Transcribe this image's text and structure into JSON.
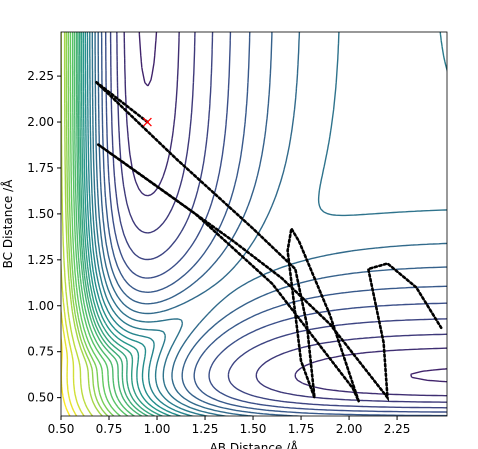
{
  "chart_data": {
    "type": "contour",
    "xlabel": "AB Distance /Å",
    "ylabel": "BC Distance /Å",
    "xlim": [
      0.5,
      2.51
    ],
    "ylim": [
      0.4,
      2.49
    ],
    "xticks": [
      {
        "value": 0.5,
        "label": "0.50"
      },
      {
        "value": 0.75,
        "label": "0.75"
      },
      {
        "value": 1.0,
        "label": "1.00"
      },
      {
        "value": 1.25,
        "label": "1.25"
      },
      {
        "value": 1.5,
        "label": "1.50"
      },
      {
        "value": 1.75,
        "label": "1.75"
      },
      {
        "value": 2.0,
        "label": "2.00"
      },
      {
        "value": 2.25,
        "label": "2.25"
      }
    ],
    "yticks": [
      {
        "value": 0.5,
        "label": "0.50"
      },
      {
        "value": 0.75,
        "label": "0.75"
      },
      {
        "value": 1.0,
        "label": "1.00"
      },
      {
        "value": 1.25,
        "label": "1.25"
      },
      {
        "value": 1.5,
        "label": "1.50"
      },
      {
        "value": 1.75,
        "label": "1.75"
      },
      {
        "value": 2.0,
        "label": "2.00"
      },
      {
        "value": 2.25,
        "label": "2.25"
      }
    ],
    "levels": [
      0.05,
      0.15,
      0.3,
      0.5,
      0.75,
      1.0,
      1.3,
      1.6,
      1.9,
      2.2,
      2.5,
      2.8,
      3.1,
      3.4,
      3.7,
      4.0,
      4.3,
      4.6,
      4.9,
      5.2,
      5.6,
      6.0,
      6.5,
      7.0,
      7.5,
      8.0,
      9.0,
      10.0,
      11.0,
      12.0
    ],
    "trajectory": {
      "color": "#000000",
      "x": [
        0.95,
        0.68,
        1.1,
        1.5,
        1.72,
        1.78,
        1.82,
        1.75,
        1.68,
        1.7,
        1.74,
        1.9,
        2.05,
        2.02,
        1.6,
        1.2,
        0.69,
        1.0,
        1.4,
        1.65,
        1.9,
        2.2,
        2.18,
        2.1,
        2.2,
        2.35,
        2.48
      ],
      "y": [
        2.0,
        2.22,
        1.8,
        1.42,
        1.2,
        0.9,
        0.5,
        0.7,
        1.3,
        1.42,
        1.35,
        0.95,
        0.48,
        0.55,
        1.12,
        1.5,
        1.88,
        1.65,
        1.35,
        1.15,
        0.9,
        0.5,
        0.8,
        1.2,
        1.23,
        1.1,
        0.88
      ]
    },
    "start": {
      "x": 0.95,
      "y": 2.0,
      "color": "#ff0000"
    }
  }
}
